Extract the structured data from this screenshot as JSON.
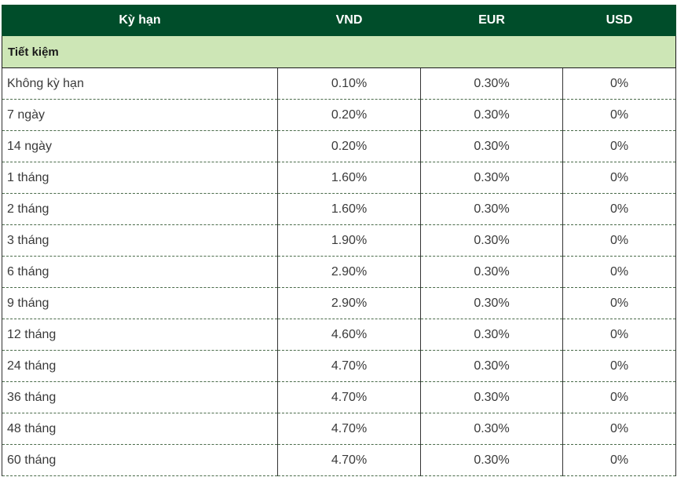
{
  "table": {
    "headers": [
      "Kỳ hạn",
      "VND",
      "EUR",
      "USD"
    ],
    "section": "Tiết kiệm",
    "rows": [
      {
        "term": "Không kỳ hạn",
        "vnd": "0.10%",
        "eur": "0.30%",
        "usd": "0%"
      },
      {
        "term": "7 ngày",
        "vnd": "0.20%",
        "eur": "0.30%",
        "usd": "0%"
      },
      {
        "term": "14 ngày",
        "vnd": "0.20%",
        "eur": "0.30%",
        "usd": "0%"
      },
      {
        "term": "1 tháng",
        "vnd": "1.60%",
        "eur": "0.30%",
        "usd": "0%"
      },
      {
        "term": "2 tháng",
        "vnd": "1.60%",
        "eur": "0.30%",
        "usd": "0%"
      },
      {
        "term": "3 tháng",
        "vnd": "1.90%",
        "eur": "0.30%",
        "usd": "0%"
      },
      {
        "term": "6 tháng",
        "vnd": "2.90%",
        "eur": "0.30%",
        "usd": "0%"
      },
      {
        "term": "9 tháng",
        "vnd": "2.90%",
        "eur": "0.30%",
        "usd": "0%"
      },
      {
        "term": "12 tháng",
        "vnd": "4.60%",
        "eur": "0.30%",
        "usd": "0%"
      },
      {
        "term": "24 tháng",
        "vnd": "4.70%",
        "eur": "0.30%",
        "usd": "0%"
      },
      {
        "term": "36 tháng",
        "vnd": "4.70%",
        "eur": "0.30%",
        "usd": "0%"
      },
      {
        "term": "48 tháng",
        "vnd": "4.70%",
        "eur": "0.30%",
        "usd": "0%"
      },
      {
        "term": "60 tháng",
        "vnd": "4.70%",
        "eur": "0.30%",
        "usd": "0%"
      }
    ]
  },
  "colors": {
    "header_bg": "#004d2a",
    "header_text": "#ffffff",
    "section_bg": "#cde6b6"
  }
}
